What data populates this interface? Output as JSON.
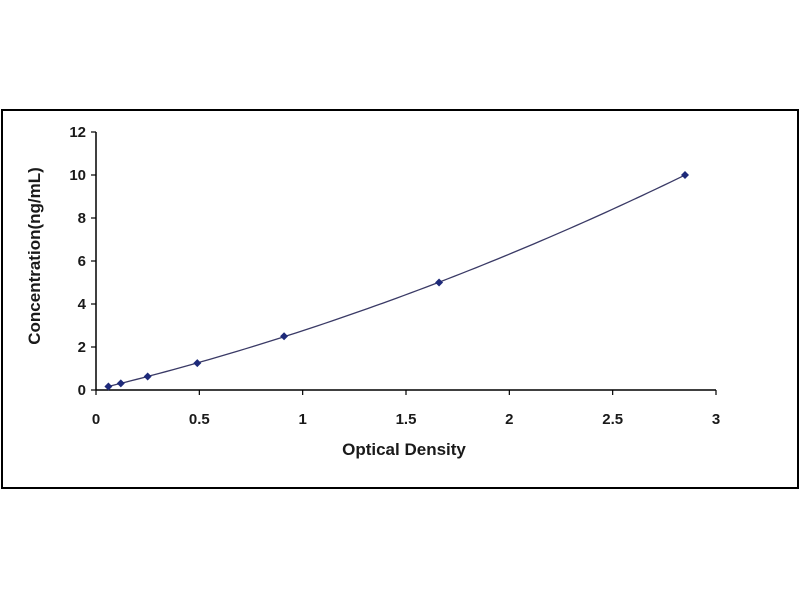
{
  "chart_data": {
    "type": "scatter",
    "title": "",
    "xlabel": "Optical Density",
    "ylabel": "Concentration(ng/mL)",
    "xlim": [
      0,
      3
    ],
    "ylim": [
      0,
      12
    ],
    "x_ticks": [
      "0",
      "0.5",
      "1",
      "1.5",
      "2",
      "2.5",
      "3"
    ],
    "y_ticks": [
      "0",
      "2",
      "4",
      "6",
      "8",
      "10",
      "12"
    ],
    "grid": false,
    "legend": "none",
    "trendline": "polynomial fit through points",
    "series": [
      {
        "x": [
          0.06,
          0.12,
          0.25,
          0.49,
          0.91,
          1.66,
          2.85
        ],
        "y": [
          0.16,
          0.31,
          0.63,
          1.25,
          2.5,
          5,
          10
        ]
      }
    ],
    "colors": {
      "marker": "#1e2a7a",
      "line": "#3a3a66",
      "frame": "#000000"
    }
  }
}
